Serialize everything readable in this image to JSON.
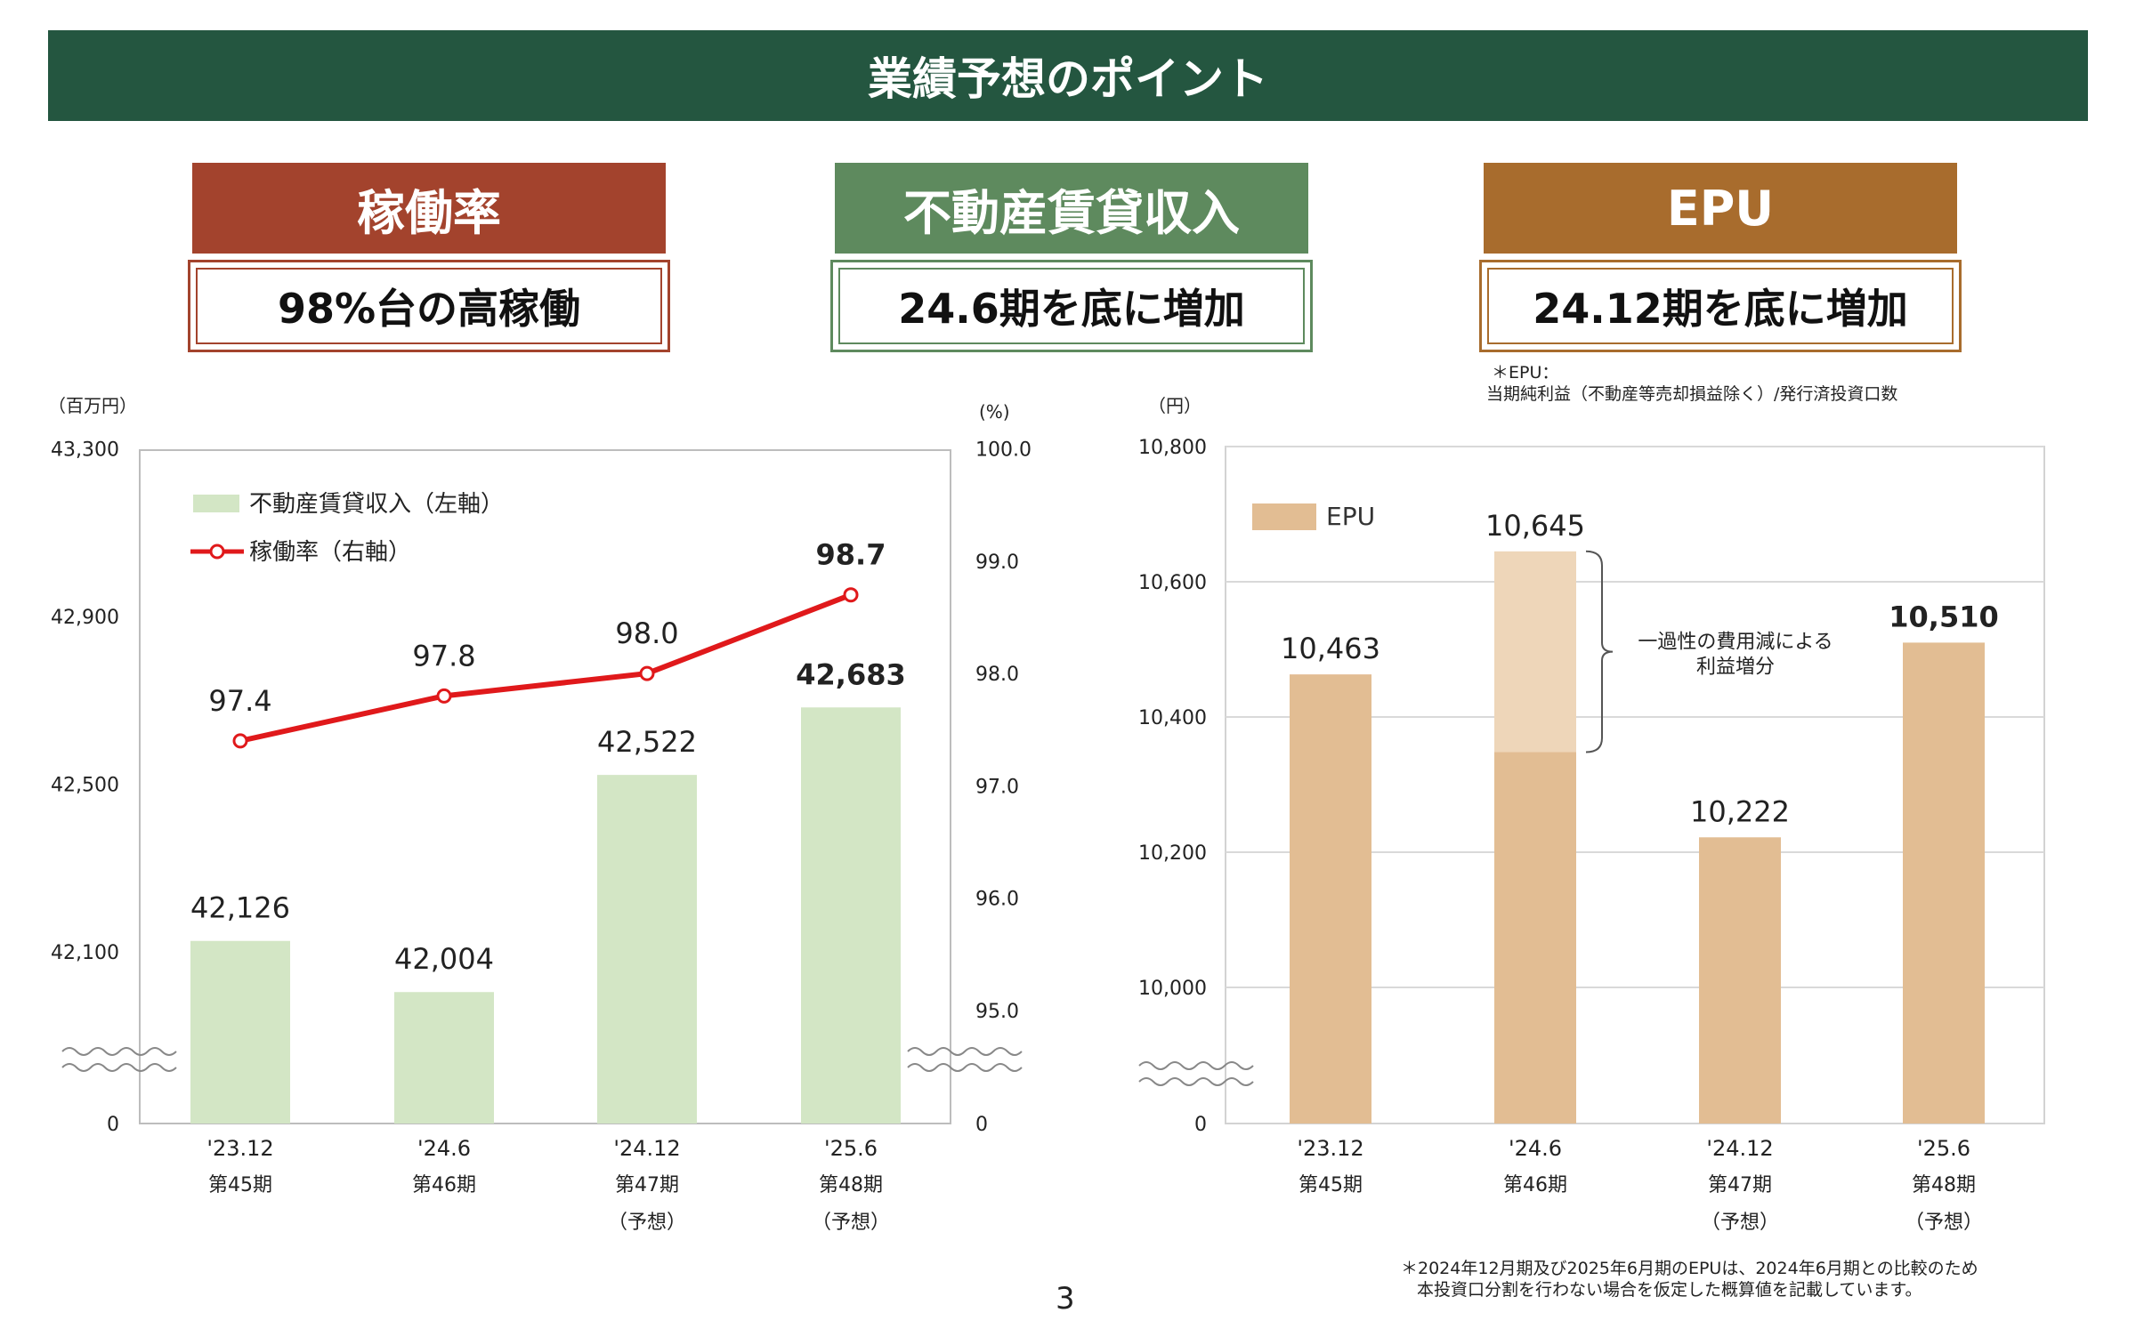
{
  "banner_title": "業績予想のポイント",
  "kpis": [
    {
      "title": "稼働率",
      "value": "98%台の高稼働",
      "head_color": "#a3432d",
      "border_color": "#a3432d"
    },
    {
      "title": "不動産賃貸収入",
      "value": "24.6期を底に増加",
      "head_color": "#5e8a5e",
      "border_color": "#5e8a5e"
    },
    {
      "title": "EPU",
      "value": "24.12期を底に増加",
      "head_color": "#a86c2d",
      "border_color": "#a86c2d"
    }
  ],
  "epu_definition": [
    "＊EPU：",
    "当期純利益（不動産等売却損益除く）/発行済投資口数"
  ],
  "footnote": [
    "＊2024年12月期及び2025年6月期のEPUは、2024年6月期との比較のため",
    "本投資口分割を行わない場合を仮定した概算値を記載しています。"
  ],
  "page_number": "3",
  "colors": {
    "bar_green": "#d3e6c5",
    "line_red": "#e0191b",
    "bar_tan": "#e2bd93",
    "bar_tan_light": "#eed6b9",
    "banner": "#245640"
  },
  "chart_data": [
    {
      "type": "bar",
      "left_unit": "（百万円）",
      "right_unit": "(%)",
      "categories": [
        "'23.12",
        "'24.6",
        "'24.12",
        "'25.6"
      ],
      "category_sub": [
        [
          "第45期"
        ],
        [
          "第46期"
        ],
        [
          "第47期",
          "（予想）"
        ],
        [
          "第48期",
          "（予想）"
        ]
      ],
      "series": [
        {
          "name": "不動産賃貸収入（左軸）",
          "type": "bar",
          "axis": "left",
          "values": [
            42126,
            42004,
            42522,
            42683
          ],
          "labels": [
            "42,126",
            "42,004",
            "42,522",
            "42,683"
          ],
          "highlight_last": true
        },
        {
          "name": "稼働率（右軸）",
          "type": "line",
          "axis": "right",
          "values": [
            97.4,
            97.8,
            98.0,
            98.7
          ],
          "labels": [
            "97.4",
            "97.8",
            "98.0",
            "98.7"
          ],
          "highlight_last": true
        }
      ],
      "left_ticks": [
        "43,300",
        "42,900",
        "42,500",
        "42,100",
        "0"
      ],
      "left_tick_values": [
        43300,
        42900,
        42500,
        42100
      ],
      "left_range": [
        41700,
        43300
      ],
      "right_ticks": [
        "100.0",
        "99.0",
        "98.0",
        "97.0",
        "96.0",
        "95.0",
        "0"
      ],
      "right_tick_values": [
        100,
        99,
        98,
        97,
        96,
        95
      ],
      "right_range": [
        94,
        100
      ],
      "axis_break": true,
      "grid": false
    },
    {
      "type": "bar",
      "unit": "（円）",
      "categories": [
        "'23.12",
        "'24.6",
        "'24.12",
        "'25.6"
      ],
      "category_sub": [
        [
          "第45期"
        ],
        [
          "第46期"
        ],
        [
          "第47期",
          "（予想）"
        ],
        [
          "第48期",
          "（予想）"
        ]
      ],
      "series": [
        {
          "name": "EPU",
          "values": [
            10463,
            10645,
            10222,
            10510
          ],
          "labels": [
            "10,463",
            "10,645",
            "10,222",
            "10,510"
          ],
          "highlight_last": true
        }
      ],
      "stacked_highlight": {
        "category_index": 1,
        "base_value": 10348,
        "annotation": [
          "一過性の費用減による",
          "利益増分"
        ]
      },
      "ticks": [
        "10,800",
        "10,600",
        "10,400",
        "10,200",
        "10,000",
        "0"
      ],
      "tick_values": [
        10800,
        10600,
        10400,
        10200,
        10000
      ],
      "range": [
        9800,
        10800
      ],
      "axis_break": true,
      "grid": true
    }
  ]
}
